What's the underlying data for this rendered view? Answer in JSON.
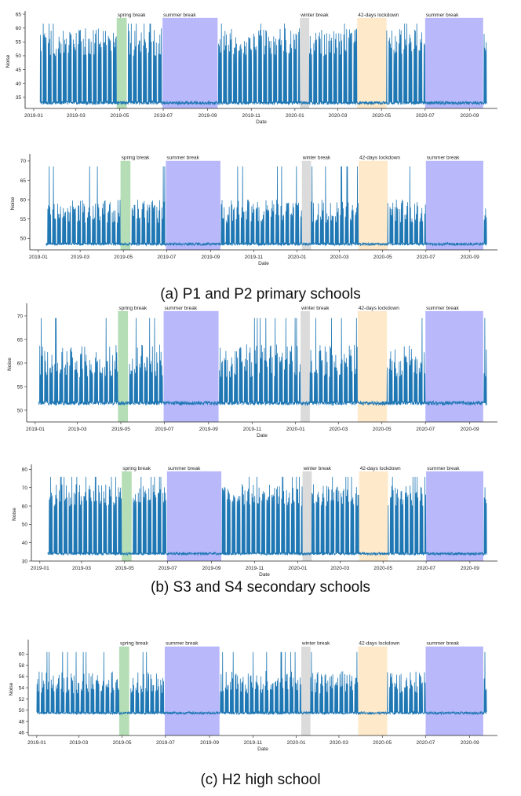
{
  "chart_data": [
    {
      "type": "line",
      "xlabel": "Date",
      "ylabel": "Noise",
      "ylim": [
        31,
        65
      ],
      "yticks": [
        35,
        40,
        45,
        50,
        55,
        60,
        65
      ],
      "xticks": [
        "2019-01",
        "2019-03",
        "2019-05",
        "2019-07",
        "2019-09",
        "2019-11",
        "2020-01",
        "2020-03",
        "2020-05",
        "2020-07",
        "2020-09"
      ],
      "grid": false,
      "series_color": "#1f77b4",
      "baseline": 33,
      "peak_range": [
        50,
        60
      ],
      "active_from": "2019-01-10",
      "active_to": "2020-09-25",
      "periods": [
        {
          "label": "spring break",
          "from": "2019-04-27",
          "to": "2019-05-11",
          "color": "#78c27a"
        },
        {
          "label": "summer break",
          "from": "2019-06-30",
          "to": "2019-09-15",
          "color": "#7d7df8"
        },
        {
          "label": "winter break",
          "from": "2020-01-08",
          "to": "2020-01-21",
          "color": "#bdbdbd"
        },
        {
          "label": "42-days lockdown",
          "from": "2020-03-28",
          "to": "2020-05-08",
          "color": "#fdd9a0"
        },
        {
          "label": "summer break",
          "from": "2020-07-01",
          "to": "2020-09-20",
          "color": "#7d7df8"
        }
      ]
    },
    {
      "type": "line",
      "xlabel": "Date",
      "ylabel": "Noise",
      "ylim": [
        47,
        71
      ],
      "yticks": [
        50,
        55,
        60,
        65,
        70
      ],
      "xticks": [
        "2019-01",
        "2019-03",
        "2019-05",
        "2019-07",
        "2019-09",
        "2019-11",
        "2020-01",
        "2020-03",
        "2020-05",
        "2020-07",
        "2020-09"
      ],
      "grid": false,
      "series_color": "#1f77b4",
      "baseline": 48.5,
      "peak_range": [
        54,
        60
      ],
      "active_from": "2019-01-12",
      "active_to": "2020-09-25",
      "periods": [
        {
          "label": "spring break",
          "from": "2019-04-27",
          "to": "2019-05-11",
          "color": "#78c27a"
        },
        {
          "label": "summer break",
          "from": "2019-06-30",
          "to": "2019-09-15",
          "color": "#7d7df8"
        },
        {
          "label": "winter break",
          "from": "2020-01-08",
          "to": "2020-01-21",
          "color": "#bdbdbd"
        },
        {
          "label": "42-days lockdown",
          "from": "2020-03-28",
          "to": "2020-05-08",
          "color": "#fdd9a0"
        },
        {
          "label": "summer break",
          "from": "2020-07-01",
          "to": "2020-09-20",
          "color": "#7d7df8"
        }
      ]
    },
    {
      "type": "line",
      "xlabel": "Date",
      "ylabel": "Noise",
      "ylim": [
        47.5,
        72
      ],
      "yticks": [
        50,
        55,
        60,
        65,
        70
      ],
      "xticks": [
        "2019-01",
        "2019-03",
        "2019-05",
        "2019-07",
        "2019-09",
        "2019-11",
        "2020-01",
        "2020-03",
        "2020-05",
        "2020-07",
        "2020-09"
      ],
      "grid": false,
      "series_color": "#1f77b4",
      "baseline": 51.5,
      "peak_range": [
        57,
        64
      ],
      "active_from": "2019-01-05",
      "active_to": "2020-09-25",
      "periods": [
        {
          "label": "spring break",
          "from": "2019-04-27",
          "to": "2019-05-11",
          "color": "#78c27a"
        },
        {
          "label": "summer break",
          "from": "2019-06-30",
          "to": "2019-09-15",
          "color": "#7d7df8"
        },
        {
          "label": "winter break",
          "from": "2020-01-08",
          "to": "2020-01-21",
          "color": "#bdbdbd"
        },
        {
          "label": "42-days lockdown",
          "from": "2020-03-28",
          "to": "2020-05-08",
          "color": "#fdd9a0"
        },
        {
          "label": "summer break",
          "from": "2020-07-01",
          "to": "2020-09-20",
          "color": "#7d7df8"
        }
      ]
    },
    {
      "type": "line",
      "xlabel": "Date",
      "ylabel": "Noise",
      "ylim": [
        30,
        81
      ],
      "yticks": [
        30,
        40,
        50,
        60,
        70,
        80
      ],
      "xticks": [
        "2019-01",
        "2019-03",
        "2019-05",
        "2019-07",
        "2019-09",
        "2019-11",
        "2020-01",
        "2020-03",
        "2020-05",
        "2020-07",
        "2020-09"
      ],
      "grid": false,
      "series_color": "#1f77b4",
      "baseline": 34,
      "peak_range": [
        60,
        72
      ],
      "active_from": "2019-01-12",
      "active_to": "2020-09-25",
      "periods": [
        {
          "label": "spring break",
          "from": "2019-04-27",
          "to": "2019-05-11",
          "color": "#78c27a"
        },
        {
          "label": "summer break",
          "from": "2019-06-30",
          "to": "2019-09-15",
          "color": "#7d7df8"
        },
        {
          "label": "winter break",
          "from": "2020-01-08",
          "to": "2020-01-21",
          "color": "#bdbdbd"
        },
        {
          "label": "42-days lockdown",
          "from": "2020-03-28",
          "to": "2020-05-08",
          "color": "#fdd9a0"
        },
        {
          "label": "summer break",
          "from": "2020-07-01",
          "to": "2020-09-20",
          "color": "#7d7df8"
        }
      ]
    },
    {
      "type": "line",
      "xlabel": "Date",
      "ylabel": "Noise",
      "ylim": [
        45.5,
        62
      ],
      "yticks": [
        46,
        48,
        50,
        52,
        54,
        56,
        58,
        60
      ],
      "xticks": [
        "2019-01",
        "2019-03",
        "2019-05",
        "2019-07",
        "2019-09",
        "2019-11",
        "2020-01",
        "2020-03",
        "2020-05",
        "2020-07",
        "2020-09"
      ],
      "grid": false,
      "series_color": "#1f77b4",
      "baseline": 49.5,
      "peak_range": [
        53,
        57
      ],
      "active_from": "2019-01-01",
      "active_to": "2020-09-25",
      "periods": [
        {
          "label": "spring break",
          "from": "2019-04-27",
          "to": "2019-05-11",
          "color": "#78c27a"
        },
        {
          "label": "summer break",
          "from": "2019-06-30",
          "to": "2019-09-15",
          "color": "#7d7df8"
        },
        {
          "label": "winter break",
          "from": "2020-01-08",
          "to": "2020-01-21",
          "color": "#bdbdbd"
        },
        {
          "label": "42-days lockdown",
          "from": "2020-03-28",
          "to": "2020-05-08",
          "color": "#fdd9a0"
        },
        {
          "label": "summer break",
          "from": "2020-07-01",
          "to": "2020-09-20",
          "color": "#7d7df8"
        }
      ]
    }
  ],
  "captions": {
    "a": "(a) P1 and P2 primary  schools",
    "b": "(b) S3 and S4 secondary schools",
    "c": "(c) H2 high school"
  }
}
